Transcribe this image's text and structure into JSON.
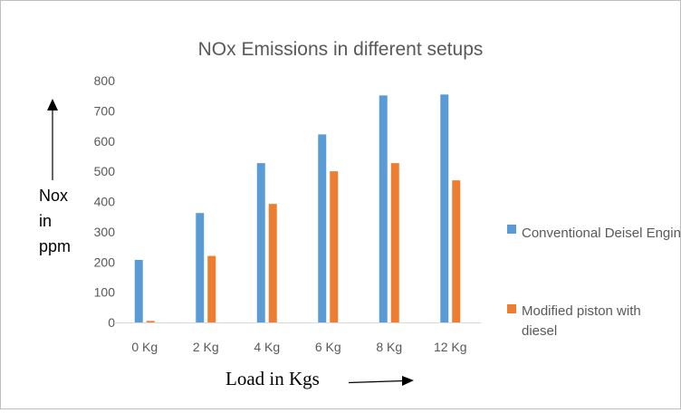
{
  "chart_data": {
    "type": "bar",
    "title": "NOx Emissions in different setups",
    "categories": [
      "0 Kg",
      "2 Kg",
      "4 Kg",
      "6 Kg",
      "8 Kg",
      "12 Kg"
    ],
    "series": [
      {
        "name": "Conventional Deisel Engine",
        "color": "#5b9bd5",
        "values": [
          207,
          362,
          527,
          622,
          751,
          754
        ]
      },
      {
        "name": "Modified piston with diesel",
        "color": "#ed7d31",
        "values": [
          5,
          220,
          392,
          500,
          527,
          470
        ]
      }
    ],
    "ylim": [
      0,
      800
    ],
    "yticks": [
      0,
      100,
      200,
      300,
      400,
      500,
      600,
      700,
      800
    ],
    "ylabel": [
      "Nox",
      "in",
      "ppm"
    ],
    "xlabel": "Load in Kgs",
    "grid": false,
    "legend": "right"
  }
}
